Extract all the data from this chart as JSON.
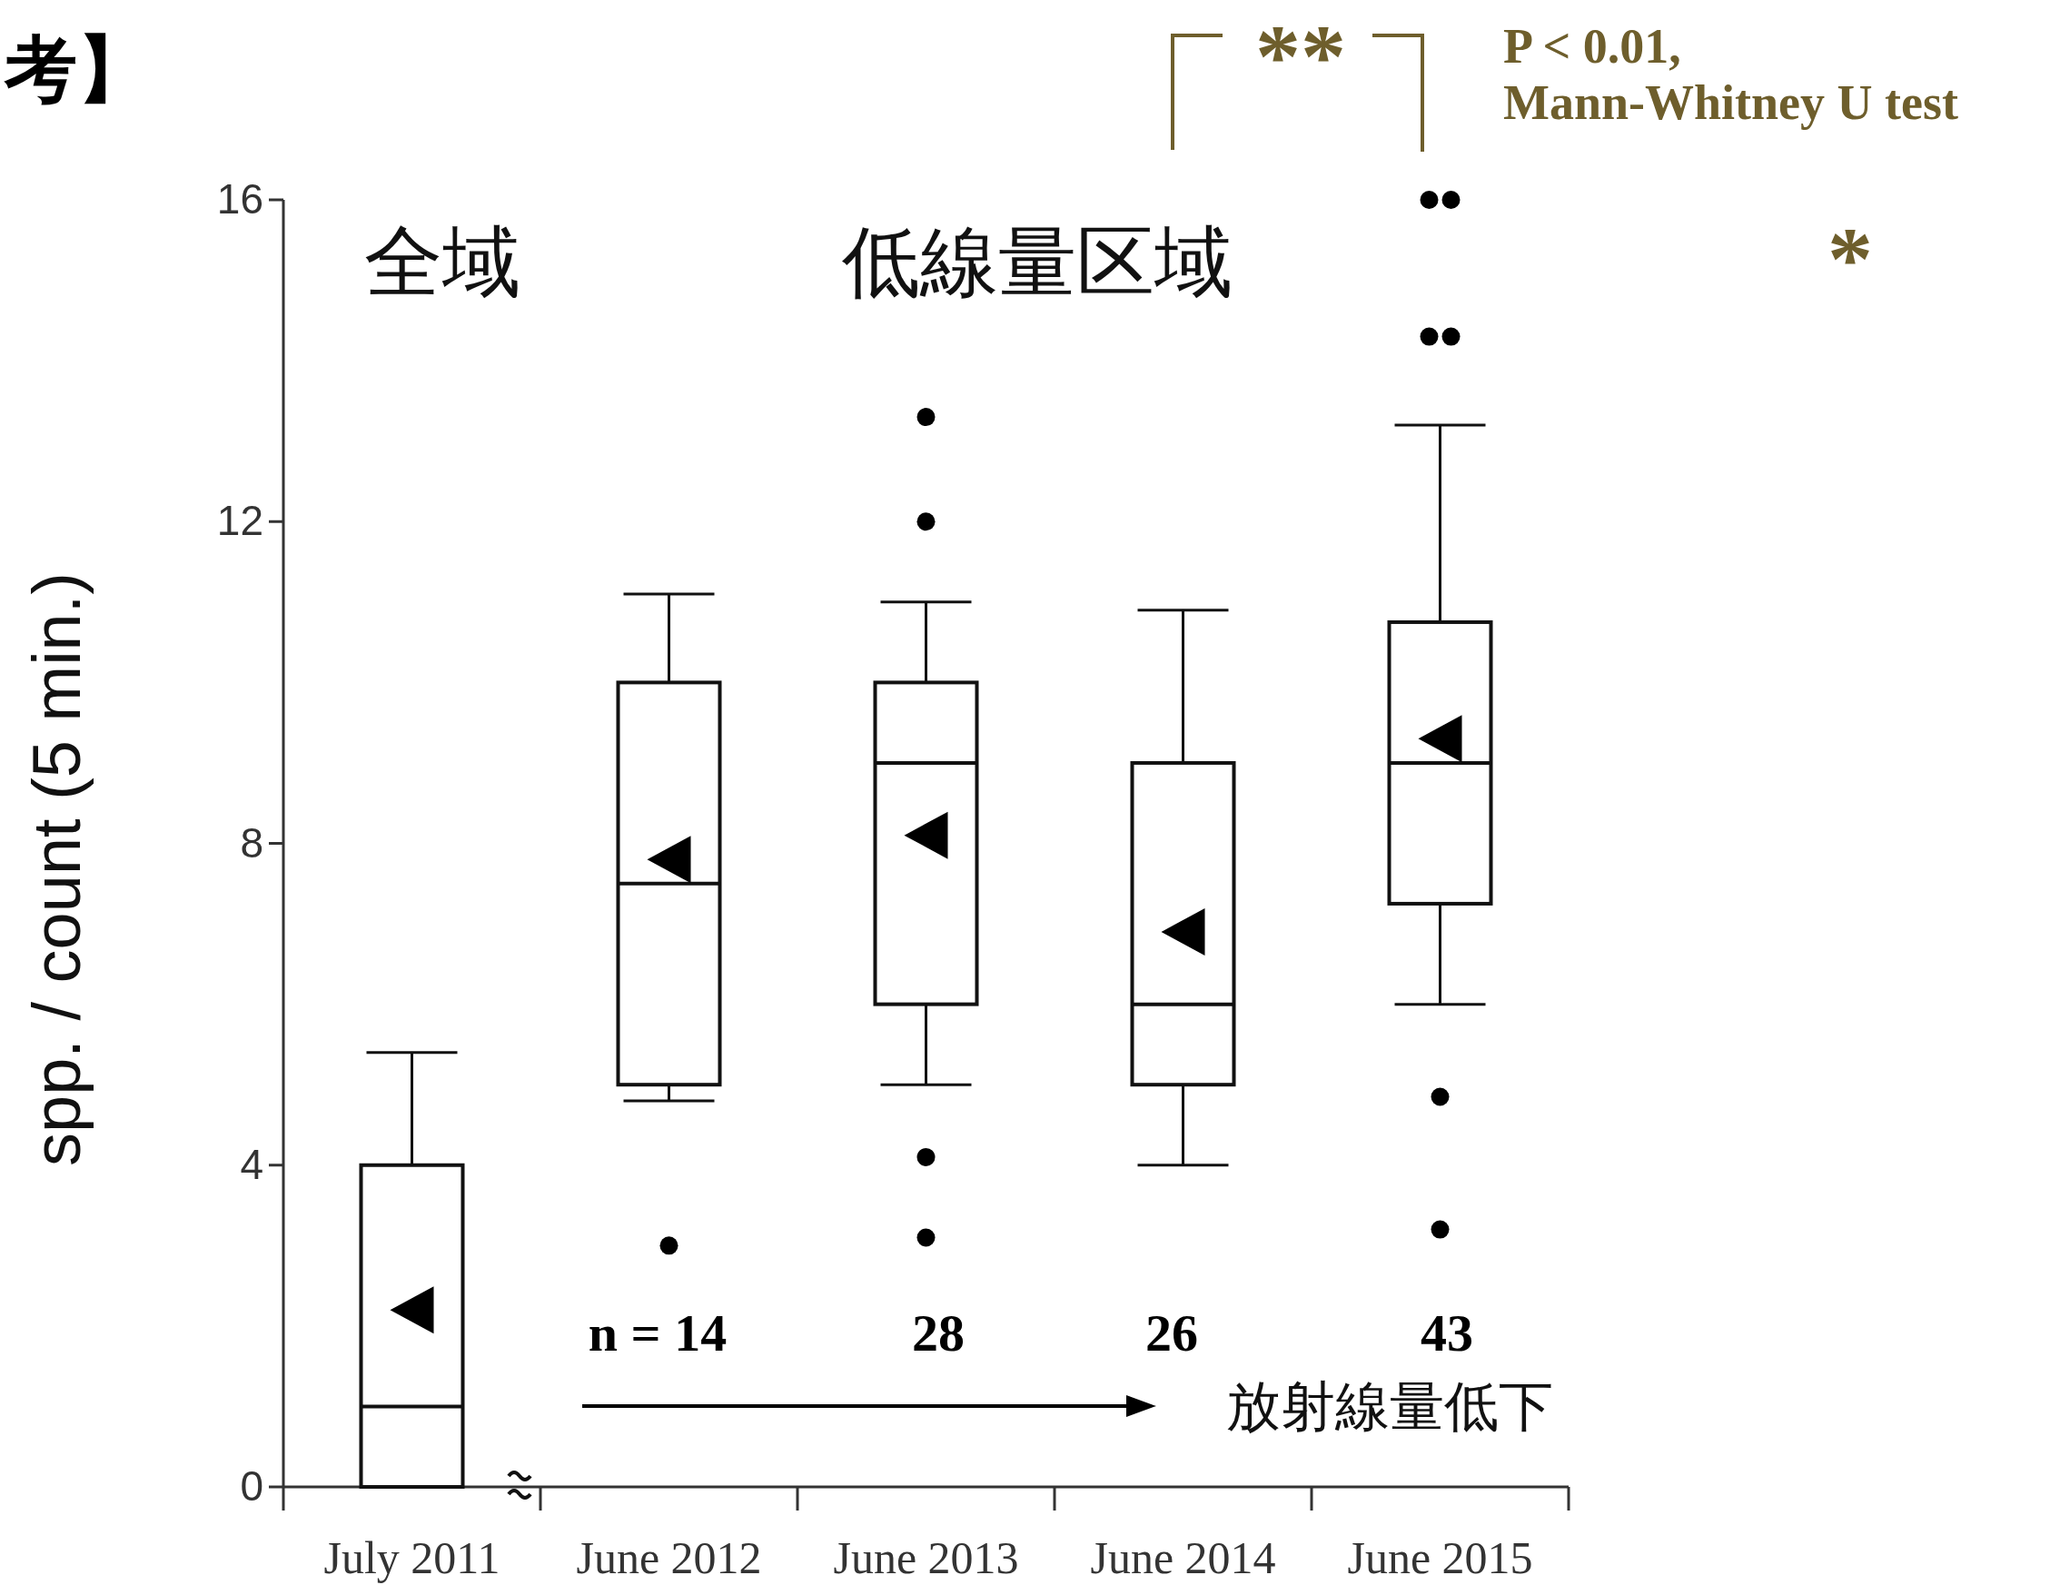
{
  "chart_data": {
    "type": "box",
    "ylabel": "spp. / count (5 min.)",
    "categories": [
      "July 2011",
      "June 2012",
      "June 2013",
      "June 2014",
      "June 2015"
    ],
    "boxes": [
      {
        "low": 0,
        "q1": 0,
        "median": 1.0,
        "q3": 4.0,
        "high": 5.4
      },
      {
        "low": 4.8,
        "q1": 5.0,
        "median": 7.5,
        "q3": 10.0,
        "high": 11.1,
        "outliers": [
          3.0
        ]
      },
      {
        "low": 5.0,
        "q1": 6.0,
        "median": 9.0,
        "q3": 10.0,
        "high": 11.0,
        "outliers": [
          13.3,
          12.0,
          4.1,
          3.1
        ]
      },
      {
        "low": 4.0,
        "q1": 5.0,
        "median": 6.0,
        "q3": 9.0,
        "high": 10.9
      },
      {
        "low": 6.0,
        "q1": 7.25,
        "median": 9.0,
        "q3": 10.75,
        "high": 13.2,
        "outliers": [
          16.0,
          16.0,
          14.3,
          14.3,
          4.85,
          3.2
        ]
      }
    ],
    "series": [
      {
        "type": "scatter",
        "marker": "triangle",
        "color": "#000000",
        "x": [
          "July 2011",
          "June 2012",
          "June 2013",
          "June 2014",
          "June 2015"
        ],
        "values": [
          2.2,
          7.8,
          8.1,
          6.9,
          9.3
        ]
      }
    ],
    "ylim": [
      0,
      16
    ],
    "yticks": [
      0,
      4,
      8,
      12,
      16
    ],
    "grid": false,
    "annotations": [
      "考】",
      "全域",
      "低線量区域",
      "n = 14",
      "28",
      "26",
      "43",
      "放射線量低下",
      "**",
      "P < 0.01,\nMann-Whitney U test",
      "*"
    ]
  }
}
